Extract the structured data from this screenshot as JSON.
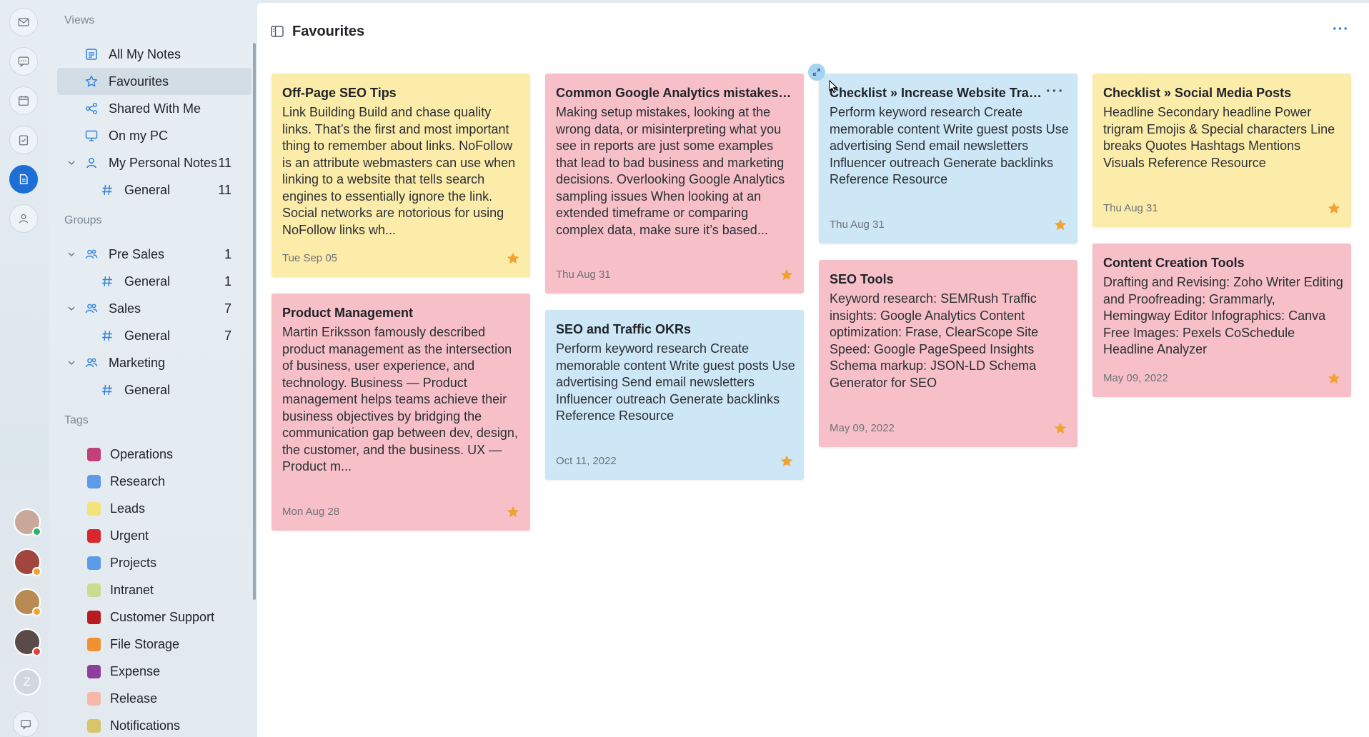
{
  "nav": {
    "views_label": "Views",
    "views": [
      {
        "label": "All My Notes",
        "icon": "notes-icon"
      },
      {
        "label": "Favourites",
        "icon": "star-outline-icon"
      },
      {
        "label": "Shared With Me",
        "icon": "share-icon"
      },
      {
        "label": "On my PC",
        "icon": "monitor-icon"
      }
    ],
    "personal": {
      "label": "My Personal Notes",
      "count": "11",
      "sub_label": "General",
      "sub_count": "11"
    },
    "groups_label": "Groups",
    "groups": [
      {
        "label": "Pre Sales",
        "count": "1",
        "sub_label": "General",
        "sub_count": "1"
      },
      {
        "label": "Sales",
        "count": "7",
        "sub_label": "General",
        "sub_count": "7"
      },
      {
        "label": "Marketing",
        "count": "",
        "sub_label": "General",
        "sub_count": ""
      }
    ],
    "tags_label": "Tags",
    "tags": [
      {
        "label": "Operations",
        "color": "#c2407a"
      },
      {
        "label": "Research",
        "color": "#5b9be8"
      },
      {
        "label": "Leads",
        "color": "#f4e27a"
      },
      {
        "label": "Urgent",
        "color": "#d9262f"
      },
      {
        "label": "Projects",
        "color": "#5b9be8"
      },
      {
        "label": "Intranet",
        "color": "#c9dc8f"
      },
      {
        "label": "Customer Support",
        "color": "#b81c22"
      },
      {
        "label": "File Storage",
        "color": "#f09033"
      },
      {
        "label": "Expense",
        "color": "#8f3e9e"
      },
      {
        "label": "Release",
        "color": "#f6b8a8"
      },
      {
        "label": "Notifications",
        "color": "#d9c46a"
      }
    ]
  },
  "rail": {
    "icons": [
      "mail-icon",
      "chat-icon",
      "calendar-icon",
      "tasks-icon",
      "notes-icon",
      "contacts-icon"
    ],
    "avatar_letter": "Z"
  },
  "main": {
    "title": "Favourites",
    "more": "···"
  },
  "cards": [
    {
      "title": "Off-Page SEO Tips",
      "body": "Link Building Build and chase quality links. That’s the first and most important thing to remember about links. NoFollow is an attribute webmasters can use when linking to a website that tells search engines to essentially ignore the link. Social networks are notorious for using NoFollow links wh...",
      "date": "Tue Sep 05",
      "color": "#fcecaa"
    },
    {
      "title": "Product Management",
      "body": "Martin Eriksson famously described product management as the intersection of business, user experience, and technology. Business — Product management helps teams achieve their business objectives by bridging the communication gap between dev, design, the customer, and the business. UX — Product m...",
      "date": "Mon Aug 28",
      "color": "#f7c0c9"
    },
    {
      "title": "Common Google Analytics mistakes to...",
      "body": "Making setup mistakes, looking at the wrong data, or misinterpreting what you see in reports are just some examples that lead to bad business and marketing decisions. Overlooking Google Analytics sampling issues When looking at an extended timeframe or comparing complex data, make sure it’s based...",
      "date": "Thu Aug 31",
      "color": "#f7c0c9"
    },
    {
      "title": "SEO and Traffic OKRs",
      "body": "Perform keyword research Create memorable content Write guest posts Use advertising Send email newsletters Influencer outreach Generate backlinks Reference Resource",
      "date": "Oct 11, 2022",
      "color": "#cde7f7"
    },
    {
      "title": "Checklist » Increase Website Traffic",
      "body": "Perform keyword research Create memorable content Write guest posts Use advertising Send email newsletters Influencer outreach Generate backlinks Reference Resource",
      "date": "Thu Aug 31",
      "color": "#cde7f7",
      "more": "···"
    },
    {
      "title": "SEO Tools",
      "body": "Keyword research: SEMRush Traffic insights: Google Analytics Content optimization: Frase, ClearScope Site Speed: Google PageSpeed Insights Schema markup: JSON-LD Schema Generator for SEO",
      "date": "May 09, 2022",
      "color": "#f7c0c9"
    },
    {
      "title": "Checklist » Social Media Posts",
      "body": "Headline Secondary headline Power trigram Emojis & Special characters Line breaks Quotes Hashtags Mentions Visuals Reference Resource",
      "date": "Thu Aug 31",
      "color": "#fcecaa"
    },
    {
      "title": "Content Creation Tools",
      "body": "Drafting and Revising: Zoho Writer Editing and Proofreading: Grammarly, Hemingway Editor Infographics: Canva Free Images: Pexels CoSchedule Headline Analyzer",
      "date": "May 09, 2022",
      "color": "#f7c0c9"
    }
  ],
  "colors": {
    "accent": "#1d6fd6",
    "star": "#f2a132"
  }
}
